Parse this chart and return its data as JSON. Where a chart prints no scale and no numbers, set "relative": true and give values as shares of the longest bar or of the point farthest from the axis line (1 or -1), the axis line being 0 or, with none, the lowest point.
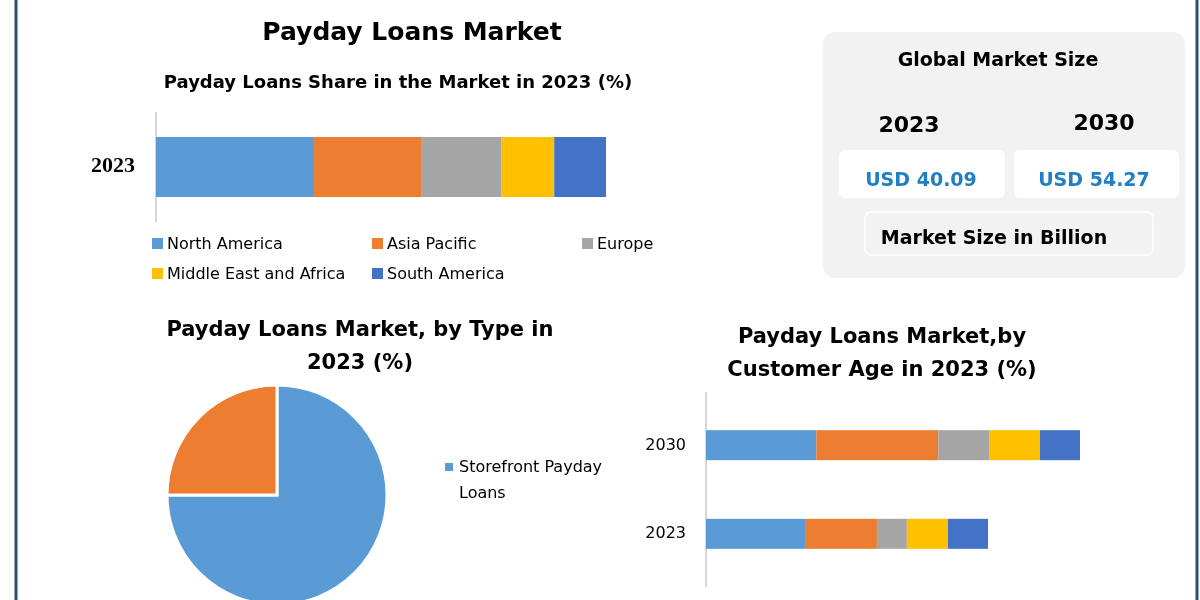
{
  "chart_data": [
    {
      "type": "bar",
      "title": "Payday Loans Market",
      "subtitle": "Payday Loans Share in the Market in 2023 (%)",
      "orientation": "horizontal",
      "stacked": true,
      "relative": true,
      "legend": "bottom",
      "categories": [
        "2023"
      ],
      "series": [
        {
          "name": "North America",
          "color": "#5b9bd5",
          "values": [
            0.351
          ]
        },
        {
          "name": "Asia Pacific",
          "color": "#ed7d31",
          "values": [
            0.238
          ]
        },
        {
          "name": "Europe",
          "color": "#a5a5a5",
          "values": [
            0.178
          ]
        },
        {
          "name": "Middle East and Africa",
          "color": "#ffc000",
          "values": [
            0.118
          ]
        },
        {
          "name": "South America",
          "color": "#4472c4",
          "values": [
            0.115
          ]
        }
      ]
    },
    {
      "type": "other",
      "title": "Global Market Size",
      "annotations": [
        "2023",
        "2030",
        "USD 40.09",
        "USD 54.27",
        "Market Size in Billion"
      ]
    },
    {
      "type": "pie",
      "title": "Payday Loans Market, by Type in 2023 (%)",
      "legend": "right",
      "categories": [
        "Storefront Payday Loans",
        null
      ],
      "values": [
        75,
        25
      ],
      "colors": [
        "#5b9bd5",
        "#ed7d31"
      ]
    },
    {
      "type": "bar",
      "title": "Payday Loans Market,by Customer Age in 2023 (%)",
      "orientation": "horizontal",
      "stacked": true,
      "relative": true,
      "categories": [
        "2030",
        "2023"
      ],
      "series": [
        {
          "color": "#5b9bd5",
          "values": [
            0.295,
            0.267
          ]
        },
        {
          "color": "#ed7d31",
          "values": [
            0.326,
            0.19
          ]
        },
        {
          "color": "#a5a5a5",
          "values": [
            0.136,
            0.08
          ]
        },
        {
          "color": "#ffc000",
          "values": [
            0.136,
            0.11
          ]
        },
        {
          "color": "#4472c4",
          "values": [
            0.107,
            0.107
          ]
        }
      ]
    }
  ]
}
